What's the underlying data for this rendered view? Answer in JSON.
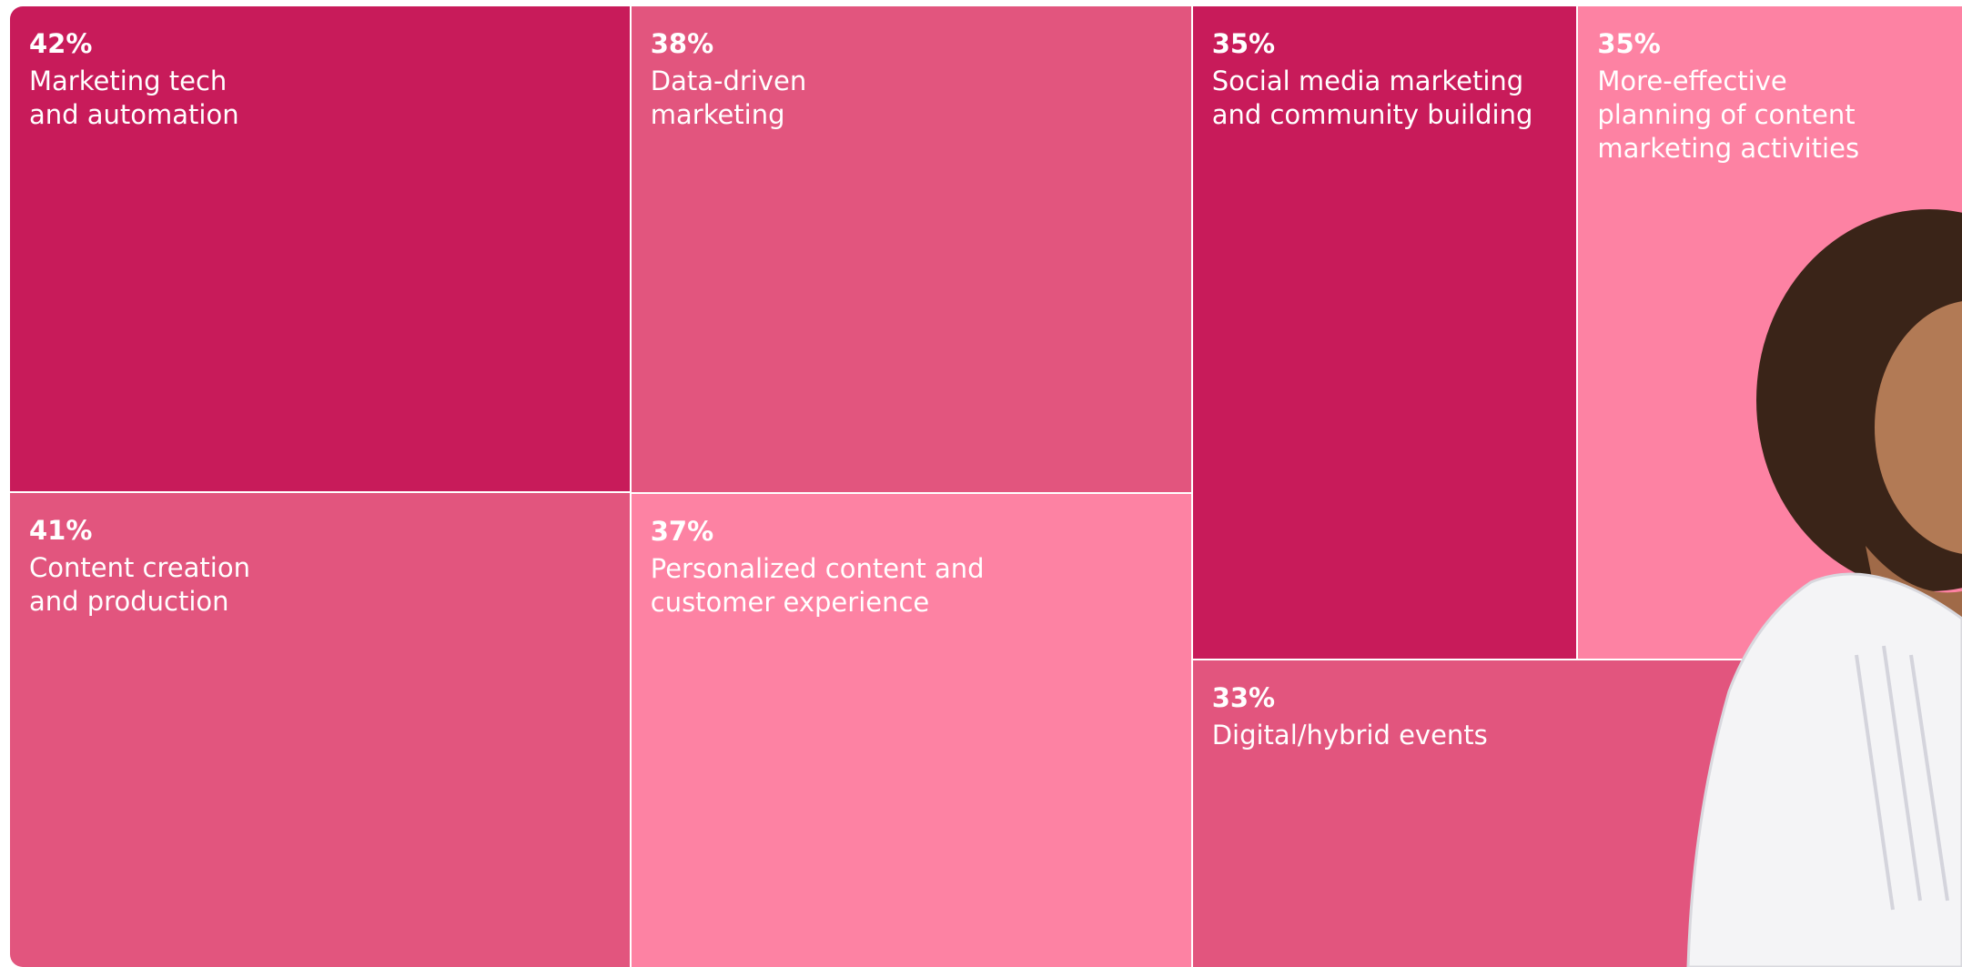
{
  "chart_data": {
    "type": "treemap",
    "categories": [
      "Marketing tech\nand automation",
      "Content creation\nand production",
      "Data-driven\nmarketing",
      "Personalized content and\ncustomer experience",
      "Social media marketing\nand community building",
      "More-effective\nplanning of content\nmarketing activities",
      "Digital/hybrid events"
    ],
    "values": [
      42,
      41,
      38,
      37,
      35,
      35,
      33
    ],
    "value_labels": [
      "42%",
      "41%",
      "38%",
      "37%",
      "35%",
      "35%",
      "33%"
    ],
    "colors": [
      "#c81b5a",
      "#e2557e",
      "#e2557e",
      "#fd82a3",
      "#c81b5a",
      "#fd82a3",
      "#e2557e"
    ]
  }
}
